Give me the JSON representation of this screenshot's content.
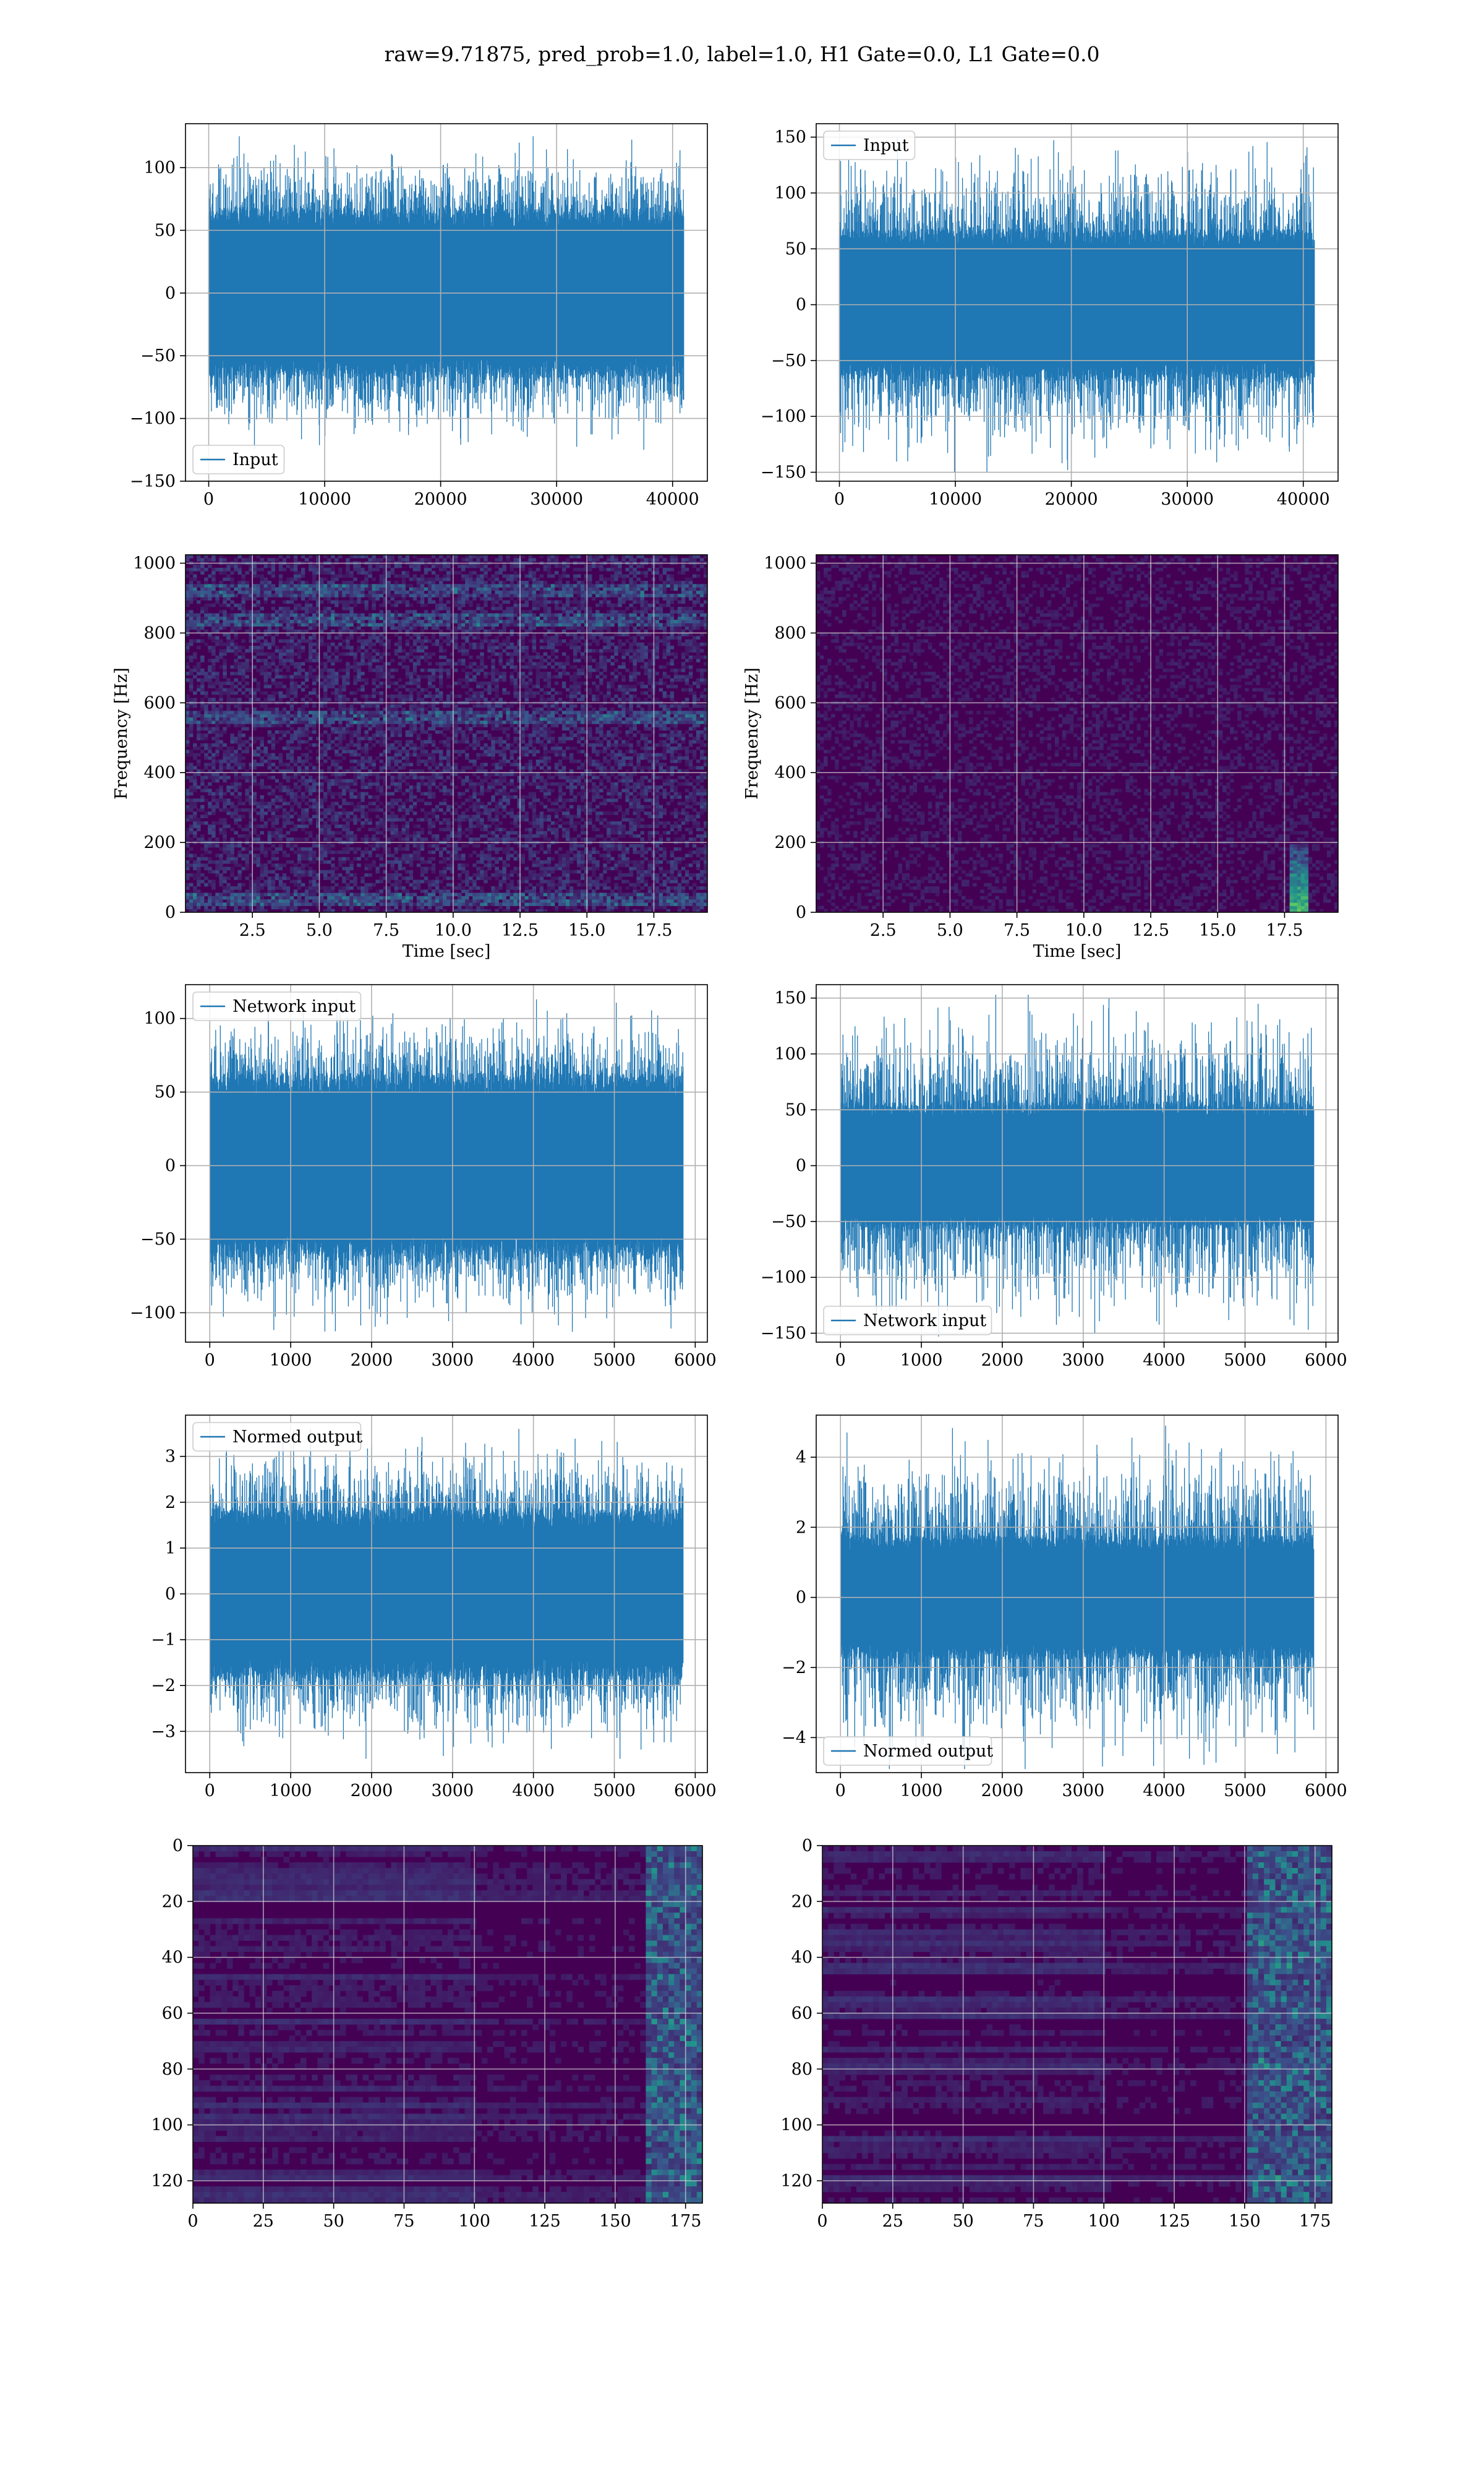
{
  "title": "raw=9.71875, pred_prob=1.0, label=1.0, H1 Gate=0.0, L1 Gate=0.0",
  "colors": {
    "series": "#1f77b4",
    "grid": "#b0b0b0",
    "viridis_dark": "#440154",
    "viridis_mid": "#21918c",
    "viridis_light": "#fde725"
  },
  "chart_data": [
    {
      "id": "h1-input",
      "type": "line",
      "series": [
        {
          "name": "Input",
          "amplitude_typical": 65,
          "amplitude_peak": 125
        }
      ],
      "xlim": [
        -2000,
        43000
      ],
      "ylim": [
        -150,
        135
      ],
      "xticks": [
        0,
        10000,
        20000,
        30000,
        40000
      ],
      "yticks": [
        -150,
        -100,
        -50,
        0,
        50,
        100
      ],
      "x_extent": [
        0,
        40960
      ],
      "grid": true,
      "legend": "lower left"
    },
    {
      "id": "l1-input",
      "type": "line",
      "series": [
        {
          "name": "Input",
          "amplitude_typical": 65,
          "amplitude_peak": 150
        }
      ],
      "xlim": [
        -2000,
        43000
      ],
      "ylim": [
        -158,
        162
      ],
      "xticks": [
        0,
        10000,
        20000,
        30000,
        40000
      ],
      "yticks": [
        -150,
        -100,
        -50,
        0,
        50,
        100,
        150
      ],
      "x_extent": [
        0,
        40960
      ],
      "grid": true,
      "legend": "upper left"
    },
    {
      "id": "h1-spectrogram",
      "type": "heatmap",
      "xlabel": "Time [sec]",
      "ylabel": "Frequency [Hz]",
      "xlim": [
        0,
        19.5
      ],
      "ylim": [
        0,
        1024
      ],
      "xticks": [
        2.5,
        5.0,
        7.5,
        10.0,
        12.5,
        15.0,
        17.5
      ],
      "yticks": [
        0,
        200,
        400,
        600,
        800,
        1000
      ],
      "colormap": "viridis",
      "bright_bands_hz": [
        40,
        560,
        840,
        920
      ],
      "grid": true
    },
    {
      "id": "l1-spectrogram",
      "type": "heatmap",
      "xlabel": "Time [sec]",
      "ylabel": "Frequency [Hz]",
      "xlim": [
        0,
        19.5
      ],
      "ylim": [
        0,
        1024
      ],
      "xticks": [
        2.5,
        5.0,
        7.5,
        10.0,
        12.5,
        15.0,
        17.5
      ],
      "yticks": [
        0,
        200,
        400,
        600,
        800,
        1000
      ],
      "colormap": "viridis",
      "chirp_time_sec": 18.0,
      "grid": true
    },
    {
      "id": "h1-network-input",
      "type": "line",
      "series": [
        {
          "name": "Network input",
          "amplitude_typical": 60,
          "amplitude_peak": 113
        }
      ],
      "xlim": [
        -300,
        6150
      ],
      "ylim": [
        -120,
        123
      ],
      "xticks": [
        0,
        1000,
        2000,
        3000,
        4000,
        5000,
        6000
      ],
      "yticks": [
        -100,
        -50,
        0,
        50,
        100
      ],
      "x_extent": [
        0,
        5850
      ],
      "grid": true,
      "legend": "upper left"
    },
    {
      "id": "l1-network-input",
      "type": "line",
      "series": [
        {
          "name": "Network input",
          "amplitude_typical": 55,
          "amplitude_peak": 153
        }
      ],
      "xlim": [
        -300,
        6150
      ],
      "ylim": [
        -158,
        162
      ],
      "xticks": [
        0,
        1000,
        2000,
        3000,
        4000,
        5000,
        6000
      ],
      "yticks": [
        -150,
        -100,
        -50,
        0,
        50,
        100,
        150
      ],
      "x_extent": [
        0,
        5850
      ],
      "grid": true,
      "legend": "lower left"
    },
    {
      "id": "h1-normed-output",
      "type": "line",
      "series": [
        {
          "name": "Normed output",
          "amplitude_typical": 1.8,
          "amplitude_peak": 3.6
        }
      ],
      "xlim": [
        -300,
        6150
      ],
      "ylim": [
        -3.9,
        3.9
      ],
      "xticks": [
        0,
        1000,
        2000,
        3000,
        4000,
        5000,
        6000
      ],
      "yticks": [
        -3,
        -2,
        -1,
        0,
        1,
        2,
        3
      ],
      "x_extent": [
        0,
        5850
      ],
      "grid": true,
      "legend": "upper left"
    },
    {
      "id": "l1-normed-output",
      "type": "line",
      "series": [
        {
          "name": "Normed output",
          "amplitude_typical": 1.7,
          "amplitude_peak": 4.9
        }
      ],
      "xlim": [
        -300,
        6150
      ],
      "ylim": [
        -5.0,
        5.2
      ],
      "xticks": [
        0,
        1000,
        2000,
        3000,
        4000,
        5000,
        6000
      ],
      "yticks": [
        -4,
        -2,
        0,
        2,
        4
      ],
      "x_extent": [
        0,
        5850
      ],
      "grid": true,
      "legend": "lower left"
    },
    {
      "id": "h1-feature-map",
      "type": "heatmap",
      "xlim": [
        0,
        181
      ],
      "ylim": [
        128,
        0
      ],
      "xticks": [
        0,
        25,
        50,
        75,
        100,
        125,
        150,
        175
      ],
      "yticks": [
        0,
        20,
        40,
        60,
        80,
        100,
        120
      ],
      "colormap": "viridis",
      "bright_region_x": [
        160,
        181
      ],
      "grid": true
    },
    {
      "id": "l1-feature-map",
      "type": "heatmap",
      "xlim": [
        0,
        181
      ],
      "ylim": [
        128,
        0
      ],
      "xticks": [
        0,
        25,
        50,
        75,
        100,
        125,
        150,
        175
      ],
      "yticks": [
        0,
        20,
        40,
        60,
        80,
        100,
        120
      ],
      "colormap": "viridis",
      "bright_region_x": [
        150,
        181
      ],
      "grid": true
    }
  ]
}
